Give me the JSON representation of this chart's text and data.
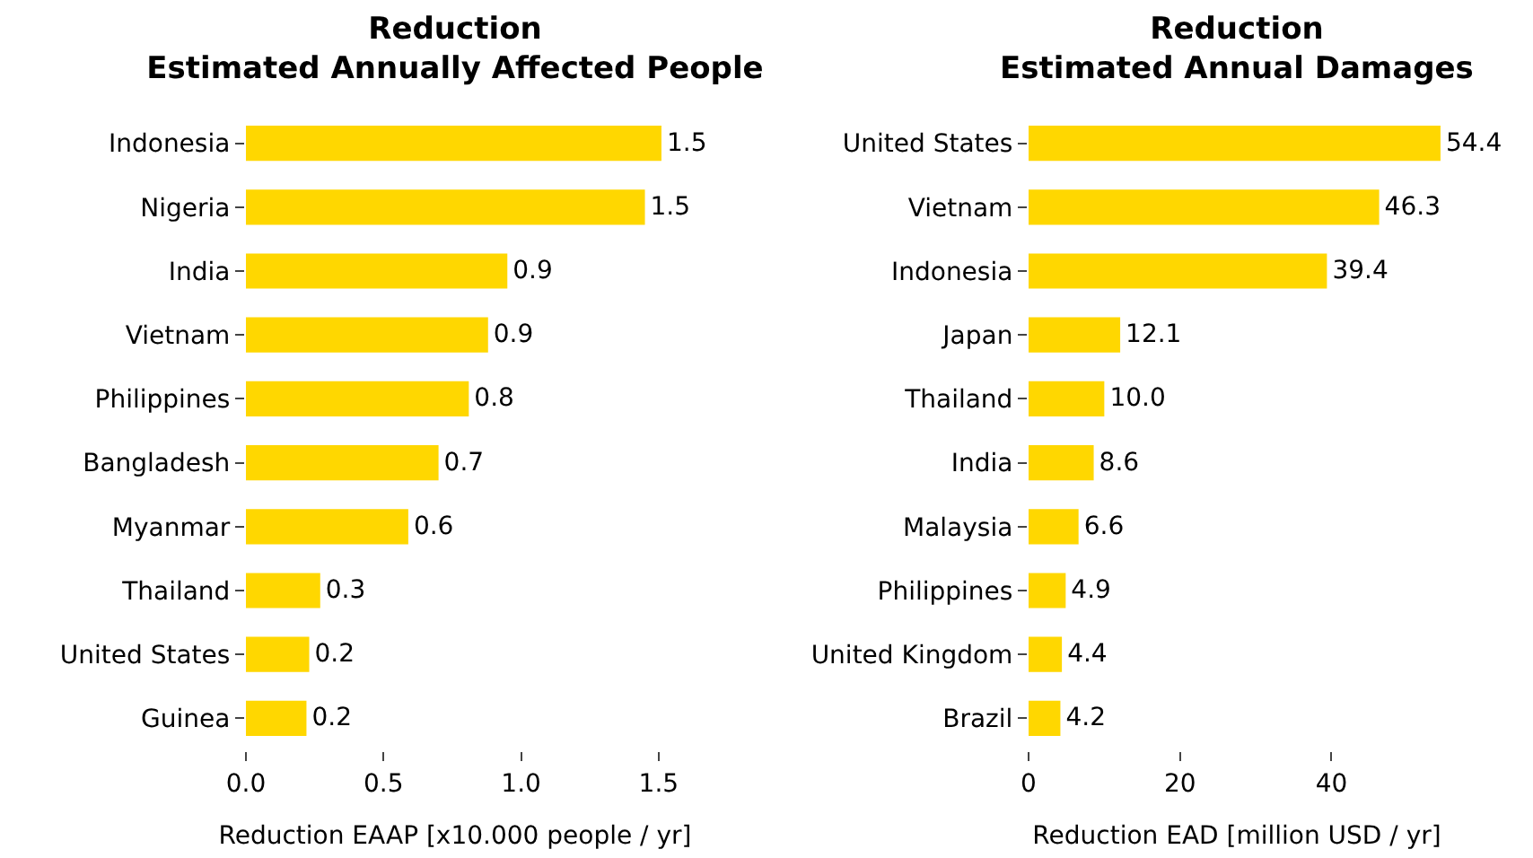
{
  "chart_data": [
    {
      "type": "bar",
      "orientation": "horizontal",
      "title": "Reduction\nEstimated Annually Affected People",
      "xlabel": "Reduction EAAP [x10.000 people / yr]",
      "categories": [
        "Indonesia",
        "Nigeria",
        "India",
        "Vietnam",
        "Philippines",
        "Bangladesh",
        "Myanmar",
        "Thailand",
        "United States",
        "Guinea"
      ],
      "values": [
        1.51,
        1.45,
        0.95,
        0.88,
        0.81,
        0.7,
        0.59,
        0.27,
        0.23,
        0.22
      ],
      "value_labels": [
        "1.5",
        "1.5",
        "0.9",
        "0.9",
        "0.8",
        "0.7",
        "0.6",
        "0.3",
        "0.2",
        "0.2"
      ],
      "color": "#ffd700",
      "xlim": [
        0,
        1.52
      ],
      "xticks": [
        {
          "value": 0,
          "label": "0.0"
        },
        {
          "value": 0.5,
          "label": "0.5"
        },
        {
          "value": 1,
          "label": "1.0"
        },
        {
          "value": 1.5,
          "label": "1.5"
        }
      ],
      "grid": false,
      "legend": false
    },
    {
      "type": "bar",
      "orientation": "horizontal",
      "title": "Reduction\nEstimated Annual Damages",
      "xlabel": "Reduction EAD [million USD / yr]",
      "categories": [
        "United States",
        "Vietnam",
        "Indonesia",
        "Japan",
        "Thailand",
        "India",
        "Malaysia",
        "Philippines",
        "United Kingdom",
        "Brazil"
      ],
      "values": [
        54.4,
        46.3,
        39.4,
        12.1,
        10.0,
        8.6,
        6.6,
        4.9,
        4.4,
        4.2
      ],
      "value_labels": [
        "54.4",
        "46.3",
        "39.4",
        "12.1",
        "10.0",
        "8.6",
        "6.6",
        "4.9",
        "4.4",
        "4.2"
      ],
      "color": "#ffd700",
      "xlim": [
        0,
        55
      ],
      "xticks": [
        0,
        20,
        40
      ],
      "grid": false,
      "legend": false
    }
  ]
}
